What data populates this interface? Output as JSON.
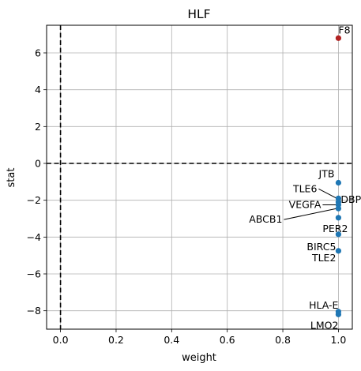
{
  "chart_data": {
    "type": "scatter",
    "title": "HLF",
    "xlabel": "weight",
    "ylabel": "stat",
    "xlim": [
      -0.05,
      1.05
    ],
    "ylim": [
      -9.0,
      7.5
    ],
    "xticks": [
      0.0,
      0.2,
      0.4,
      0.6,
      0.8,
      1.0
    ],
    "xtick_labels": [
      "0.0",
      "0.2",
      "0.4",
      "0.6",
      "0.8",
      "1.0"
    ],
    "yticks": [
      -8,
      -6,
      -4,
      -2,
      0,
      2,
      4,
      6
    ],
    "ytick_labels": [
      "−8",
      "−6",
      "−4",
      "−2",
      "0",
      "2",
      "4",
      "6"
    ],
    "grid": true,
    "reference_lines": {
      "vertical_x": 0,
      "horizontal_y": 0,
      "style": "dashed",
      "color": "#000000"
    },
    "colors": {
      "positive": "#b22222",
      "negative": "#1f77b4",
      "grid": "#b0b0b0"
    },
    "points": [
      {
        "label": "F8",
        "x": 1.0,
        "y": 6.8,
        "color": "positive"
      },
      {
        "label": "JTB",
        "x": 1.0,
        "y": -1.05,
        "color": "negative"
      },
      {
        "label": "TLE6",
        "x": 1.0,
        "y": -1.9,
        "color": "negative"
      },
      {
        "label": "DBP",
        "x": 1.0,
        "y": -2.1,
        "color": "negative"
      },
      {
        "label": "VEGFA",
        "x": 1.0,
        "y": -2.25,
        "color": "negative"
      },
      {
        "label": "ABCB1",
        "x": 1.0,
        "y": -2.45,
        "color": "negative"
      },
      {
        "label": "PER2",
        "x": 1.0,
        "y": -2.95,
        "color": "negative"
      },
      {
        "label": "BIRC5",
        "x": 1.0,
        "y": -3.85,
        "color": "negative"
      },
      {
        "label": "TLE2",
        "x": 1.0,
        "y": -4.75,
        "color": "negative"
      },
      {
        "label": "HLA-E",
        "x": 1.0,
        "y": -8.05,
        "color": "negative"
      },
      {
        "label": "LMO2",
        "x": 1.0,
        "y": -8.2,
        "color": "negative"
      }
    ]
  }
}
